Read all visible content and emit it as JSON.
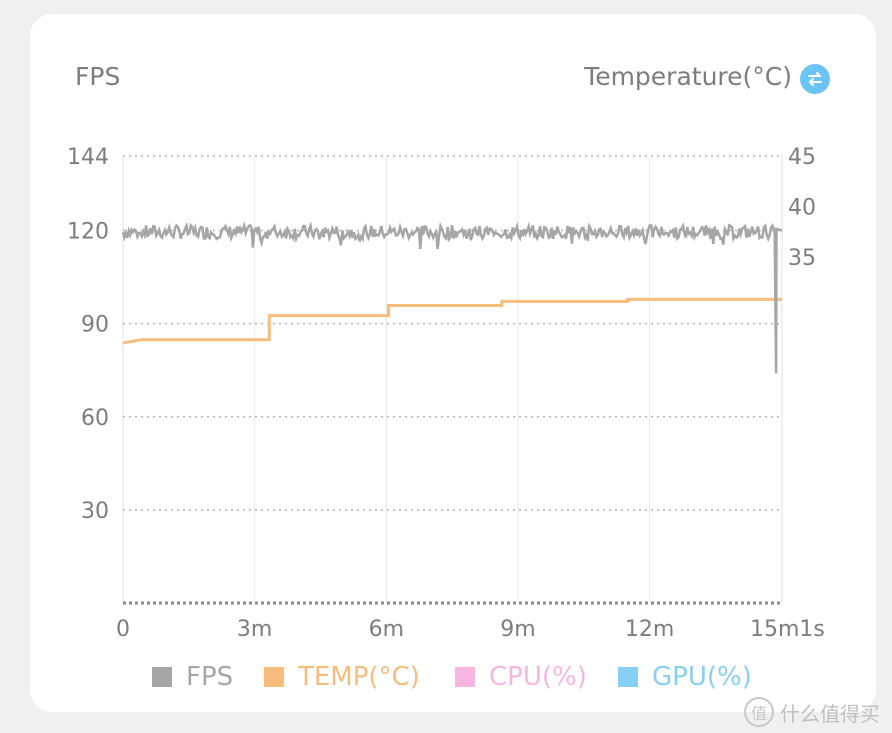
{
  "header": {
    "left_label": "FPS",
    "right_label": "Temperature(°C)"
  },
  "watermark": {
    "logo": "值",
    "text": "什么值得买"
  },
  "colors": {
    "fps": "#a6a6a6",
    "temp": "#f8bc7c",
    "cpu": "#f7b6e0",
    "gpu": "#86d0f6",
    "grid": "#b5b5b5",
    "tick": "#7d7d7d",
    "swap_icon": "#6cc3f5"
  },
  "icons": {
    "swap": "swap-arrows-icon"
  },
  "chart_data": {
    "type": "line",
    "x_unit": "seconds",
    "x_range": [
      0,
      901
    ],
    "x_ticks": [
      {
        "value": 0,
        "label": "0"
      },
      {
        "value": 180,
        "label": "3m"
      },
      {
        "value": 360,
        "label": "6m"
      },
      {
        "value": 540,
        "label": "9m"
      },
      {
        "value": 720,
        "label": "12m"
      },
      {
        "value": 901,
        "label": "15m1s"
      }
    ],
    "y_left": {
      "range": [
        0,
        144
      ],
      "ticks": [
        {
          "value": 144,
          "label": "144"
        },
        {
          "value": 120,
          "label": "120"
        },
        {
          "value": 90,
          "label": "90"
        },
        {
          "value": 60,
          "label": "60"
        },
        {
          "value": 30,
          "label": "30"
        }
      ]
    },
    "y_right": {
      "range": [
        0,
        45
      ],
      "ticks": [
        {
          "value": 45,
          "label": "45"
        },
        {
          "value": 40,
          "label": "40"
        },
        {
          "value": 35,
          "label": "35"
        }
      ]
    },
    "grid": true,
    "legend_position": "bottom",
    "series": [
      {
        "name": "FPS",
        "axis": "left",
        "mean": 119.5,
        "jitter": 2.2,
        "samples": 450,
        "end_dip": {
          "x": 893,
          "y": 74
        }
      },
      {
        "name": "TEMP(°C)",
        "axis": "right",
        "step_points": [
          [
            0,
            26.5
          ],
          [
            25,
            26.8
          ],
          [
            200,
            26.8
          ],
          [
            200,
            29.2
          ],
          [
            363,
            29.2
          ],
          [
            363,
            30.2
          ],
          [
            518,
            30.2
          ],
          [
            518,
            30.6
          ],
          [
            690,
            30.6
          ],
          [
            690,
            30.8
          ],
          [
            901,
            30.8
          ]
        ]
      },
      {
        "name": "CPU(%)",
        "axis": "left",
        "points": []
      },
      {
        "name": "GPU(%)",
        "axis": "left",
        "points": []
      }
    ]
  }
}
